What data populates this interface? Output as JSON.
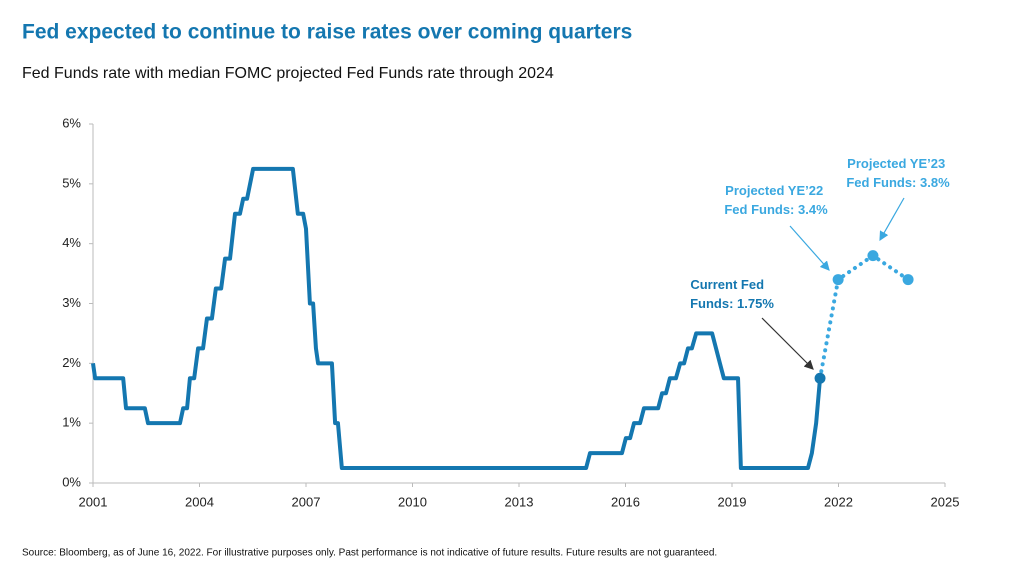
{
  "chart_data": {
    "type": "line",
    "title": "Fed expected to continue to raise rates over coming quarters",
    "subtitle": "Fed Funds rate with median FOMC projected Fed Funds rate through 2024",
    "source": "Source: Bloomberg, as of June 16, 2022. For illustrative purposes only. Past performance is not indicative of future results. Future results are not guaranteed.",
    "xlim": [
      2001,
      2025
    ],
    "xticks": [
      2001,
      2004,
      2007,
      2010,
      2013,
      2016,
      2019,
      2022,
      2025
    ],
    "ylim": [
      0,
      6
    ],
    "yticks": [
      {
        "value": 0,
        "label": "0%"
      },
      {
        "value": 1,
        "label": "1%"
      },
      {
        "value": 2,
        "label": "2%"
      },
      {
        "value": 3,
        "label": "3%"
      },
      {
        "value": 4,
        "label": "4%"
      },
      {
        "value": 5,
        "label": "5%"
      },
      {
        "value": 6,
        "label": "6%"
      }
    ],
    "grid": false,
    "series": [
      {
        "color": "#1477b0",
        "style": "solid",
        "x": [
          2001.0,
          2001.06,
          2001.85,
          2001.93,
          2002.46,
          2002.55,
          2003.45,
          2003.54,
          2003.65,
          2003.73,
          2003.85,
          2003.96,
          2004.1,
          2004.21,
          2004.35,
          2004.46,
          2004.61,
          2004.72,
          2004.86,
          2005.0,
          2005.14,
          2005.23,
          2005.34,
          2005.51,
          2006.63,
          2006.77,
          2006.92,
          2007.0,
          2007.11,
          2007.2,
          2007.28,
          2007.34,
          2007.73,
          2007.82,
          2007.9,
          2008.01,
          2014.89,
          2015.0,
          2015.9,
          2016.01,
          2016.13,
          2016.24,
          2016.41,
          2016.52,
          2016.92,
          2017.03,
          2017.14,
          2017.25,
          2017.42,
          2017.54,
          2017.65,
          2017.76,
          2017.87,
          2017.99,
          2018.44,
          2018.55,
          2018.66,
          2018.77,
          2019.17,
          2019.25,
          2021.14,
          2021.25,
          2021.37,
          2021.48
        ],
        "values": [
          2.0,
          1.75,
          1.75,
          1.25,
          1.25,
          1.0,
          1.0,
          1.25,
          1.25,
          1.75,
          1.75,
          2.25,
          2.25,
          2.75,
          2.75,
          3.25,
          3.25,
          3.75,
          3.75,
          4.5,
          4.5,
          4.75,
          4.75,
          5.25,
          5.25,
          4.5,
          4.5,
          4.25,
          3.0,
          3.0,
          2.25,
          2.0,
          2.0,
          1.0,
          1.0,
          0.25,
          0.25,
          0.5,
          0.5,
          0.75,
          0.75,
          1.0,
          1.0,
          1.25,
          1.25,
          1.5,
          1.5,
          1.75,
          1.75,
          2.0,
          2.0,
          2.25,
          2.25,
          2.5,
          2.5,
          2.25,
          2.0,
          1.75,
          1.75,
          0.25,
          0.25,
          0.5,
          1.0,
          1.75
        ]
      },
      {
        "color": "#3aa8e0",
        "style": "dotted",
        "x": [
          2021.48,
          2021.99,
          2022.97,
          2023.96
        ],
        "values": [
          1.75,
          3.4,
          3.8,
          3.4
        ]
      }
    ],
    "annotations": [
      {
        "lines": [
          "Current Fed",
          "Funds: 1.75%"
        ]
      },
      {
        "lines": [
          "Projected YE’22",
          "Fed Funds: 3.4%"
        ]
      },
      {
        "lines": [
          "Projected YE’23",
          "Fed Funds: 3.8%"
        ]
      }
    ]
  }
}
